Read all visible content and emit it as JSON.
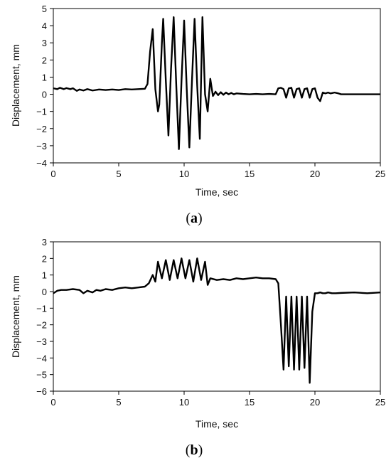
{
  "chart_data": [
    {
      "type": "line",
      "panel_caption": {
        "open": "(",
        "letter": "a",
        "close": ")"
      },
      "xlabel": "Time, sec",
      "ylabel": "Displacement, mm",
      "xlim": [
        0,
        25
      ],
      "ylim": [
        -4,
        5
      ],
      "xticks": [
        0,
        5,
        10,
        15,
        20,
        25
      ],
      "yticks": [
        -4,
        -3,
        -2,
        -1,
        0,
        1,
        2,
        3,
        4,
        5
      ],
      "grid": false,
      "series": [
        {
          "color": "#000000",
          "x": [
            0,
            0.3,
            0.5,
            0.8,
            1.0,
            1.3,
            1.5,
            1.8,
            2.0,
            2.3,
            2.6,
            3.0,
            3.5,
            4.0,
            4.5,
            5.0,
            5.5,
            6.0,
            6.5,
            7.0,
            7.2,
            7.4,
            7.6,
            7.8,
            8.0,
            8.1,
            8.3,
            8.4,
            8.6,
            8.8,
            9.0,
            9.2,
            9.4,
            9.6,
            9.8,
            10.0,
            10.2,
            10.4,
            10.6,
            10.8,
            11.0,
            11.2,
            11.4,
            11.6,
            11.8,
            12.0,
            12.2,
            12.4,
            12.6,
            12.8,
            13.0,
            13.2,
            13.4,
            13.6,
            13.8,
            14.0,
            14.5,
            15.0,
            15.5,
            16.0,
            16.5,
            17.0,
            17.2,
            17.4,
            17.6,
            17.8,
            18.0,
            18.2,
            18.4,
            18.6,
            18.8,
            19.0,
            19.2,
            19.4,
            19.6,
            19.8,
            20.0,
            20.2,
            20.4,
            20.6,
            20.8,
            21.0,
            21.2,
            21.5,
            21.8,
            22.0,
            23.0,
            24.0,
            25.0
          ],
          "y": [
            0.35,
            0.3,
            0.38,
            0.3,
            0.36,
            0.3,
            0.35,
            0.2,
            0.28,
            0.22,
            0.3,
            0.22,
            0.28,
            0.25,
            0.28,
            0.25,
            0.3,
            0.28,
            0.3,
            0.32,
            0.6,
            2.5,
            3.8,
            0.3,
            -1.0,
            -0.6,
            3.0,
            4.4,
            0.8,
            -2.4,
            1.5,
            4.5,
            0.5,
            -3.2,
            0.8,
            4.3,
            0.3,
            -3.1,
            0.8,
            4.4,
            0.5,
            -2.6,
            4.5,
            0.0,
            -1.0,
            0.9,
            -0.1,
            0.15,
            -0.05,
            0.12,
            -0.03,
            0.1,
            0.0,
            0.08,
            0.0,
            0.05,
            0.02,
            0.0,
            0.02,
            0.0,
            0.02,
            0.0,
            0.35,
            0.38,
            0.3,
            -0.2,
            0.35,
            0.38,
            -0.2,
            0.3,
            0.35,
            -0.2,
            0.3,
            0.35,
            -0.2,
            0.3,
            0.35,
            -0.2,
            -0.4,
            0.1,
            0.05,
            0.1,
            0.05,
            0.1,
            0.05,
            0.0,
            0.0,
            0.0,
            0.0
          ]
        }
      ]
    },
    {
      "type": "line",
      "panel_caption": {
        "open": "(",
        "letter": "b",
        "close": ")"
      },
      "xlabel": "Time, sec",
      "ylabel": "Displacement, mm",
      "xlim": [
        0,
        25
      ],
      "ylim": [
        -6,
        3
      ],
      "xticks": [
        0,
        5,
        10,
        15,
        20,
        25
      ],
      "yticks": [
        -6,
        -5,
        -4,
        -3,
        -2,
        -1,
        0,
        1,
        2,
        3
      ],
      "grid": false,
      "series": [
        {
          "color": "#000000",
          "x": [
            0,
            0.3,
            0.6,
            1.0,
            1.5,
            2.0,
            2.3,
            2.6,
            3.0,
            3.3,
            3.6,
            4.0,
            4.5,
            5.0,
            5.5,
            6.0,
            6.5,
            7.0,
            7.3,
            7.6,
            7.8,
            8.0,
            8.3,
            8.6,
            8.9,
            9.2,
            9.5,
            9.8,
            10.1,
            10.4,
            10.7,
            11.0,
            11.3,
            11.6,
            11.8,
            12.0,
            12.5,
            13.0,
            13.5,
            14.0,
            14.5,
            15.0,
            15.5,
            16.0,
            16.5,
            17.0,
            17.2,
            17.4,
            17.6,
            17.8,
            18.0,
            18.2,
            18.4,
            18.6,
            18.8,
            19.0,
            19.2,
            19.4,
            19.6,
            19.8,
            20.0,
            20.2,
            20.4,
            20.6,
            20.8,
            21.0,
            21.3,
            21.6,
            22.0,
            23.0,
            24.0,
            25.0
          ],
          "y": [
            -0.1,
            0.05,
            0.1,
            0.1,
            0.15,
            0.1,
            -0.1,
            0.05,
            -0.05,
            0.1,
            0.05,
            0.15,
            0.1,
            0.2,
            0.25,
            0.2,
            0.25,
            0.3,
            0.5,
            1.0,
            0.6,
            1.8,
            0.8,
            1.9,
            0.7,
            1.9,
            0.8,
            2.0,
            0.8,
            1.9,
            0.6,
            2.0,
            0.7,
            1.8,
            0.4,
            0.8,
            0.7,
            0.75,
            0.7,
            0.8,
            0.75,
            0.8,
            0.85,
            0.8,
            0.8,
            0.75,
            0.5,
            -2.0,
            -4.7,
            -0.3,
            -4.5,
            -0.3,
            -4.7,
            -0.3,
            -4.7,
            -0.3,
            -4.6,
            -0.3,
            -5.5,
            -1.2,
            -0.1,
            -0.1,
            -0.05,
            -0.1,
            -0.1,
            -0.05,
            -0.1,
            -0.1,
            -0.08,
            -0.05,
            -0.1,
            -0.05
          ]
        }
      ]
    }
  ]
}
